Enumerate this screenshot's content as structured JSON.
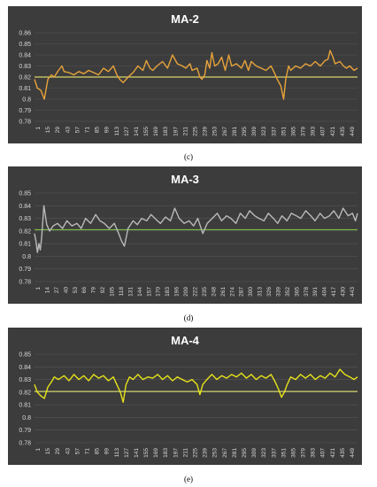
{
  "chart_data": [
    {
      "type": "line",
      "title": "MA-2",
      "caption": "(c)",
      "ylim": [
        0.78,
        0.86
      ],
      "yticks": [
        "0.86",
        "0.85",
        "0.84",
        "0.83",
        "0.82",
        "0.81",
        "0.8",
        "0.79",
        "0.78"
      ],
      "xticks": [
        "1",
        "15",
        "29",
        "43",
        "57",
        "71",
        "85",
        "99",
        "113",
        "127",
        "141",
        "155",
        "169",
        "183",
        "197",
        "211",
        "225",
        "239",
        "253",
        "267",
        "281",
        "295",
        "309",
        "323",
        "337",
        "351",
        "365",
        "379",
        "393",
        "407",
        "421",
        "435",
        "449"
      ],
      "x_range": [
        1,
        460
      ],
      "reference_value": 0.82,
      "line_color": "#e8a33a",
      "reference_color": "#d8d46a",
      "background": "#3c3c3c",
      "x_points": [
        1,
        5,
        10,
        15,
        20,
        25,
        29,
        35,
        40,
        43,
        50,
        57,
        64,
        71,
        78,
        85,
        92,
        99,
        106,
        113,
        118,
        122,
        127,
        134,
        141,
        148,
        155,
        160,
        165,
        169,
        175,
        183,
        190,
        197,
        204,
        211,
        216,
        222,
        225,
        232,
        236,
        239,
        243,
        246,
        250,
        253,
        257,
        262,
        267,
        272,
        277,
        281,
        288,
        295,
        300,
        305,
        309,
        316,
        323,
        330,
        337,
        341,
        346,
        351,
        355,
        358,
        362,
        365,
        372,
        379,
        386,
        393,
        400,
        407,
        414,
        418,
        421,
        425,
        428,
        435,
        440,
        444,
        449,
        455,
        460
      ],
      "values": [
        0.818,
        0.81,
        0.808,
        0.8,
        0.818,
        0.822,
        0.82,
        0.826,
        0.83,
        0.825,
        0.824,
        0.822,
        0.825,
        0.823,
        0.826,
        0.824,
        0.822,
        0.828,
        0.825,
        0.83,
        0.822,
        0.818,
        0.815,
        0.82,
        0.824,
        0.83,
        0.826,
        0.835,
        0.828,
        0.826,
        0.83,
        0.834,
        0.828,
        0.84,
        0.832,
        0.83,
        0.828,
        0.832,
        0.826,
        0.828,
        0.82,
        0.818,
        0.822,
        0.835,
        0.828,
        0.842,
        0.83,
        0.832,
        0.838,
        0.826,
        0.84,
        0.83,
        0.832,
        0.828,
        0.835,
        0.826,
        0.834,
        0.83,
        0.828,
        0.826,
        0.83,
        0.825,
        0.818,
        0.812,
        0.8,
        0.818,
        0.83,
        0.826,
        0.83,
        0.828,
        0.832,
        0.83,
        0.834,
        0.83,
        0.835,
        0.836,
        0.844,
        0.838,
        0.832,
        0.834,
        0.83,
        0.828,
        0.83,
        0.826,
        0.828
      ]
    },
    {
      "type": "line",
      "title": "MA-3",
      "caption": "(d)",
      "ylim": [
        0.78,
        0.85
      ],
      "yticks": [
        "0.85",
        "0.84",
        "0.83",
        "0.82",
        "0.81",
        "0.8",
        "0.79",
        "0.78"
      ],
      "xticks": [
        "1",
        "14",
        "27",
        "40",
        "53",
        "66",
        "79",
        "92",
        "105",
        "118",
        "131",
        "144",
        "157",
        "170",
        "183",
        "196",
        "209",
        "222",
        "235",
        "248",
        "261",
        "274",
        "287",
        "300",
        "313",
        "326",
        "339",
        "352",
        "365",
        "378",
        "391",
        "404",
        "417",
        "430",
        "443"
      ],
      "x_range": [
        1,
        450
      ],
      "reference_value": 0.821,
      "line_color": "#b9b9b9",
      "reference_color": "#7fbf4a",
      "background": "#3c3c3c",
      "x_points": [
        1,
        3,
        5,
        7,
        9,
        11,
        14,
        18,
        22,
        27,
        33,
        40,
        46,
        53,
        60,
        66,
        72,
        79,
        86,
        92,
        98,
        105,
        112,
        118,
        122,
        126,
        131,
        138,
        144,
        150,
        157,
        163,
        170,
        176,
        183,
        190,
        196,
        202,
        209,
        216,
        222,
        228,
        235,
        241,
        248,
        255,
        261,
        268,
        274,
        281,
        287,
        294,
        300,
        307,
        313,
        320,
        326,
        333,
        339,
        345,
        352,
        358,
        365,
        371,
        378,
        385,
        391,
        398,
        404,
        411,
        417,
        424,
        430,
        437,
        443,
        447,
        450
      ],
      "values": [
        0.818,
        0.812,
        0.803,
        0.81,
        0.805,
        0.815,
        0.84,
        0.825,
        0.82,
        0.824,
        0.826,
        0.822,
        0.828,
        0.824,
        0.826,
        0.822,
        0.83,
        0.826,
        0.833,
        0.828,
        0.826,
        0.822,
        0.826,
        0.818,
        0.812,
        0.808,
        0.822,
        0.828,
        0.825,
        0.83,
        0.828,
        0.833,
        0.829,
        0.826,
        0.831,
        0.828,
        0.838,
        0.83,
        0.826,
        0.828,
        0.824,
        0.83,
        0.818,
        0.826,
        0.83,
        0.834,
        0.828,
        0.832,
        0.83,
        0.826,
        0.834,
        0.83,
        0.836,
        0.832,
        0.83,
        0.828,
        0.834,
        0.83,
        0.826,
        0.832,
        0.828,
        0.834,
        0.832,
        0.83,
        0.836,
        0.832,
        0.828,
        0.834,
        0.83,
        0.832,
        0.836,
        0.83,
        0.838,
        0.832,
        0.834,
        0.828,
        0.834
      ]
    },
    {
      "type": "line",
      "title": "MA-4",
      "caption": "(e)",
      "ylim": [
        0.78,
        0.85
      ],
      "yticks": [
        "0.85",
        "0.84",
        "0.83",
        "0.82",
        "0.81",
        "0.8",
        "0.79",
        "0.78"
      ],
      "xticks": [
        "1",
        "15",
        "29",
        "43",
        "57",
        "71",
        "85",
        "99",
        "113",
        "127",
        "141",
        "155",
        "169",
        "183",
        "197",
        "211",
        "225",
        "239",
        "253",
        "267",
        "281",
        "295",
        "309",
        "323",
        "337",
        "351",
        "365",
        "379",
        "393",
        "407",
        "421",
        "435",
        "449"
      ],
      "x_range": [
        1,
        460
      ],
      "reference_value": 0.8205,
      "line_color": "#e6e21a",
      "reference_color": "#cfcf6a",
      "background": "#3c3c3c",
      "x_points": [
        1,
        5,
        10,
        15,
        20,
        25,
        29,
        35,
        43,
        50,
        57,
        64,
        71,
        78,
        85,
        92,
        99,
        106,
        113,
        118,
        123,
        127,
        131,
        136,
        141,
        148,
        155,
        162,
        169,
        176,
        183,
        190,
        197,
        204,
        211,
        218,
        225,
        232,
        236,
        240,
        246,
        253,
        260,
        267,
        274,
        281,
        288,
        295,
        302,
        309,
        316,
        323,
        330,
        337,
        343,
        348,
        352,
        356,
        360,
        365,
        372,
        379,
        386,
        393,
        400,
        407,
        414,
        421,
        428,
        435,
        442,
        449,
        455,
        460
      ],
      "values": [
        0.826,
        0.82,
        0.817,
        0.815,
        0.824,
        0.828,
        0.832,
        0.83,
        0.833,
        0.829,
        0.834,
        0.83,
        0.833,
        0.829,
        0.834,
        0.831,
        0.833,
        0.829,
        0.832,
        0.826,
        0.82,
        0.812,
        0.826,
        0.832,
        0.83,
        0.834,
        0.83,
        0.832,
        0.831,
        0.834,
        0.83,
        0.833,
        0.829,
        0.832,
        0.83,
        0.828,
        0.83,
        0.826,
        0.818,
        0.826,
        0.83,
        0.834,
        0.83,
        0.833,
        0.831,
        0.834,
        0.832,
        0.835,
        0.831,
        0.834,
        0.83,
        0.833,
        0.831,
        0.834,
        0.828,
        0.822,
        0.816,
        0.82,
        0.826,
        0.832,
        0.83,
        0.834,
        0.831,
        0.834,
        0.83,
        0.833,
        0.831,
        0.835,
        0.832,
        0.838,
        0.834,
        0.832,
        0.83,
        0.832
      ]
    }
  ]
}
